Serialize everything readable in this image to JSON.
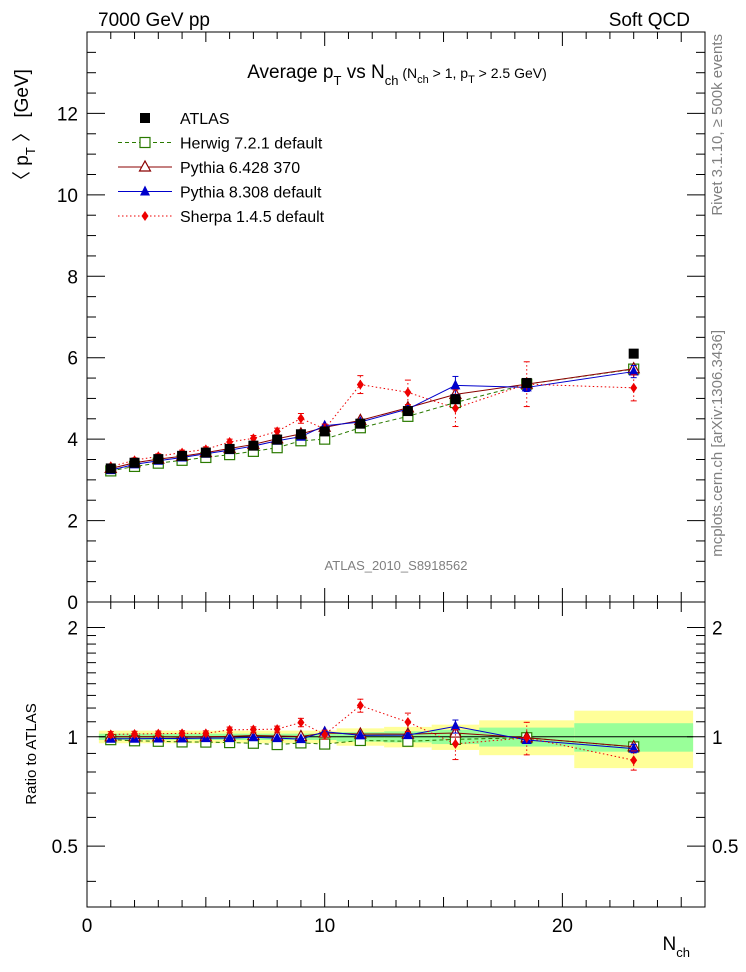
{
  "header": {
    "left": "7000 GeV pp",
    "right": "Soft QCD"
  },
  "side": {
    "top": "Rivet 3.1.10, ≥ 500k events",
    "bottom": "mcplots.cern.ch [arXiv:1306.3436]"
  },
  "watermark": "ATLAS_2010_S8918562",
  "title": {
    "main": "Average p",
    "sub_t": "T",
    "vs": " vs N",
    "sub_ch": "ch",
    "cond": " (N",
    "cond_ch": "ch",
    "cond2": " > 1, p",
    "cond_t": "T",
    "cond3": " > 2.5 GeV)"
  },
  "chart_data": {
    "type": "scatter",
    "x": [
      1,
      2,
      3,
      4,
      5,
      6,
      7,
      8,
      9,
      10,
      11.5,
      13.5,
      15.5,
      18.5,
      23
    ],
    "xlim": [
      0,
      26
    ],
    "xlabel": "N",
    "xlabel_sub": "ch",
    "main": {
      "ylabel": "〈 p",
      "ylabel_sub": "T",
      "ylabel_tail": " 〉 [GeV]",
      "ylim": [
        0,
        14
      ],
      "yticks": [
        "0",
        "2",
        "4",
        "6",
        "8",
        "10",
        "12"
      ]
    },
    "ratio": {
      "ylabel": "Ratio to ATLAS",
      "ylim": [
        0.34,
        2.35
      ],
      "yticks": [
        "0.5",
        "1",
        "2"
      ],
      "bands": [
        {
          "x0": 0.5,
          "x1": 10.5,
          "green": 0.02,
          "yellow": 0.04
        },
        {
          "x0": 10.5,
          "x1": 12.5,
          "green": 0.03,
          "yellow": 0.055
        },
        {
          "x0": 12.5,
          "x1": 14.5,
          "green": 0.035,
          "yellow": 0.065
        },
        {
          "x0": 14.5,
          "x1": 16.5,
          "green": 0.045,
          "yellow": 0.08
        },
        {
          "x0": 16.5,
          "x1": 20.5,
          "green": 0.06,
          "yellow": 0.11
        },
        {
          "x0": 20.5,
          "x1": 25.5,
          "green": 0.09,
          "yellow": 0.18
        }
      ]
    },
    "series": [
      {
        "name": "ATLAS",
        "color": "#000000",
        "marker": "square-filled",
        "line": "none",
        "values": [
          3.28,
          3.42,
          3.51,
          3.59,
          3.67,
          3.76,
          3.84,
          3.99,
          4.12,
          4.19,
          4.38,
          4.69,
          4.98,
          5.38,
          6.1
        ]
      },
      {
        "name": "Herwig 7.2.1 default",
        "color": "#2a7a00",
        "marker": "square-open",
        "line": "dashed",
        "values": [
          3.22,
          3.33,
          3.41,
          3.48,
          3.55,
          3.62,
          3.7,
          3.79,
          3.96,
          4.0,
          4.28,
          4.56,
          4.9,
          5.35,
          5.72
        ],
        "ratio": [
          0.982,
          0.975,
          0.972,
          0.968,
          0.967,
          0.964,
          0.96,
          0.952,
          0.962,
          0.955,
          0.977,
          0.972,
          0.984,
          0.994,
          0.938
        ]
      },
      {
        "name": "Pythia 6.428 370",
        "color": "#8b0000",
        "marker": "triangle-open",
        "line": "solid",
        "values": [
          3.28,
          3.42,
          3.51,
          3.58,
          3.67,
          3.77,
          3.87,
          4.01,
          4.13,
          4.29,
          4.46,
          4.77,
          5.1,
          5.35,
          5.73
        ],
        "ratio": [
          1.0,
          1.0,
          1.0,
          0.997,
          1.0,
          1.003,
          1.008,
          1.005,
          1.002,
          1.024,
          1.018,
          1.017,
          1.024,
          0.994,
          0.939
        ]
      },
      {
        "name": "Pythia 8.308 default",
        "color": "#0000cc",
        "marker": "triangle-filled",
        "line": "solid",
        "values": [
          3.24,
          3.38,
          3.47,
          3.55,
          3.64,
          3.73,
          3.83,
          3.96,
          4.06,
          4.33,
          4.42,
          4.74,
          5.32,
          5.27,
          5.66
        ],
        "errors": [
          0,
          0,
          0,
          0,
          0,
          0,
          0,
          0,
          0,
          0,
          0,
          0,
          0.22,
          0.1,
          0.15
        ],
        "ratio": [
          0.988,
          0.988,
          0.989,
          0.989,
          0.992,
          0.992,
          0.997,
          0.992,
          0.985,
          1.033,
          1.009,
          1.011,
          1.068,
          0.98,
          0.928
        ]
      },
      {
        "name": "Sherpa 1.4.5 default",
        "color": "#ee0000",
        "marker": "diamond-filled",
        "line": "dotted",
        "values": [
          3.33,
          3.48,
          3.58,
          3.67,
          3.75,
          3.93,
          4.02,
          4.19,
          4.51,
          4.25,
          5.34,
          5.15,
          4.76,
          5.35,
          5.26
        ],
        "errors": [
          0.06,
          0.06,
          0.06,
          0.06,
          0.06,
          0.07,
          0.07,
          0.08,
          0.12,
          0.12,
          0.22,
          0.3,
          0.45,
          0.55,
          0.32
        ],
        "ratio": [
          1.015,
          1.018,
          1.02,
          1.022,
          1.022,
          1.045,
          1.047,
          1.05,
          1.095,
          1.014,
          1.219,
          1.098,
          0.956,
          0.994,
          0.862
        ]
      }
    ]
  }
}
